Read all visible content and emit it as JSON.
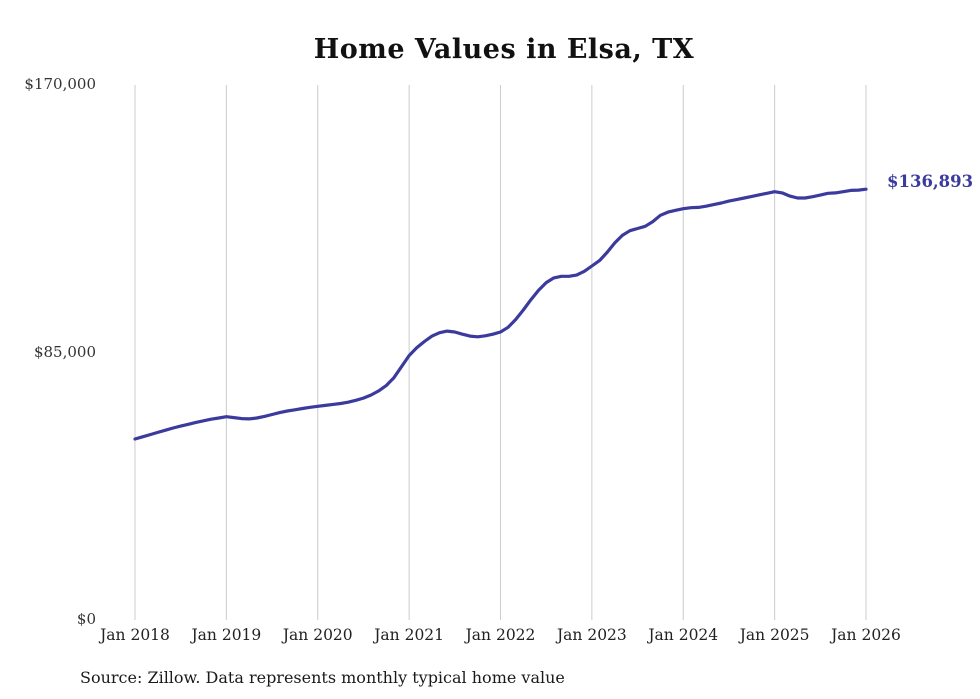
{
  "chart_data": {
    "type": "line",
    "title": "Home Values in Elsa, TX",
    "source": "Source: Zillow. Data represents monthly typical home value",
    "end_label": "$136,893",
    "final_value": 136893,
    "line_color": "#3b3a9d",
    "grid_color": "#cccccc",
    "ylim": [
      0,
      170000
    ],
    "y_ticks": [
      {
        "label": "$0",
        "value": 0
      },
      {
        "label": "$85,000",
        "value": 85000
      },
      {
        "label": "$170,000",
        "value": 170000
      }
    ],
    "x_tick_labels": [
      "Jan 2018",
      "Jan 2019",
      "Jan 2020",
      "Jan 2021",
      "Jan 2022",
      "Jan 2023",
      "Jan 2024",
      "Jan 2025",
      "Jan 2026"
    ],
    "x_start": "Jan 2018",
    "x_end": "Jan 2026",
    "x_interval": "monthly",
    "legend": "none",
    "grid": "vertical-only",
    "values": [
      57500,
      58200,
      58900,
      59600,
      60300,
      61000,
      61600,
      62200,
      62800,
      63300,
      63800,
      64200,
      64600,
      64300,
      64000,
      63900,
      64200,
      64700,
      65300,
      65900,
      66400,
      66800,
      67200,
      67600,
      67900,
      68200,
      68500,
      68800,
      69200,
      69800,
      70500,
      71500,
      72800,
      74500,
      77000,
      80500,
      84000,
      86500,
      88500,
      90200,
      91300,
      91800,
      91500,
      90800,
      90200,
      90000,
      90300,
      90800,
      91500,
      93000,
      95500,
      98500,
      101800,
      104800,
      107200,
      108700,
      109200,
      109200,
      109600,
      110800,
      112500,
      114200,
      116800,
      119800,
      122200,
      123700,
      124400,
      125100,
      126600,
      128600,
      129600,
      130200,
      130700,
      131000,
      131100,
      131500,
      132000,
      132500,
      133100,
      133600,
      134100,
      134600,
      135100,
      135600,
      136100,
      135700,
      134700,
      134100,
      134100,
      134500,
      135000,
      135600,
      135700,
      136100,
      136500,
      136600,
      136893
    ]
  }
}
